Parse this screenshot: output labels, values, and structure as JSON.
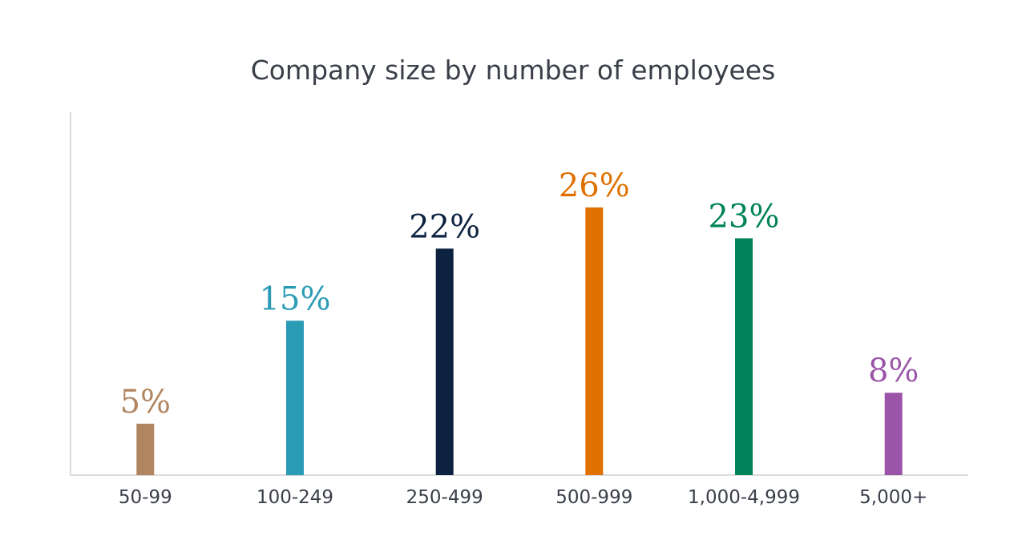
{
  "chart_data": {
    "type": "bar",
    "title": "Company size by number of employees",
    "xlabel": "",
    "ylabel": "",
    "categories": [
      "50-99",
      "100-249",
      "250-499",
      "500-999",
      "1,000-4,999",
      "5,000+"
    ],
    "values": [
      5,
      15,
      22,
      26,
      23,
      8
    ],
    "data_labels": [
      "5%",
      "15%",
      "22%",
      "26%",
      "23%",
      "8%"
    ],
    "colors": [
      "#b08560",
      "#2a9bb5",
      "#0d2240",
      "#e07000",
      "#00825a",
      "#9b55a8"
    ],
    "ylim": [
      0,
      30
    ],
    "grid": false,
    "legend": "none"
  }
}
